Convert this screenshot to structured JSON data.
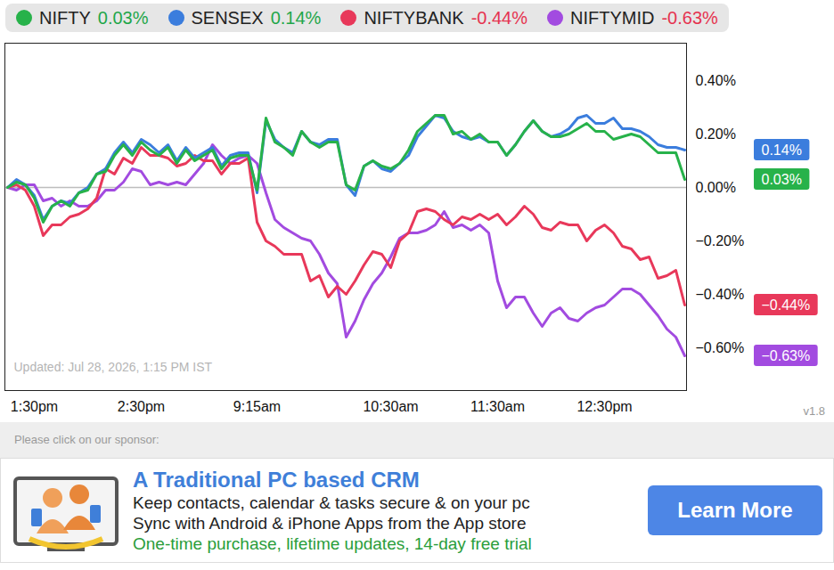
{
  "chart_data": {
    "type": "line",
    "categories": [
      null,
      null,
      null,
      "1:30pm",
      null,
      null,
      null,
      null,
      null,
      null,
      null,
      null,
      null,
      null,
      null,
      "2:30pm",
      null,
      null,
      null,
      null,
      null,
      null,
      null,
      null,
      null,
      null,
      null,
      null,
      "9:15am",
      null,
      null,
      null,
      null,
      null,
      null,
      null,
      null,
      null,
      null,
      null,
      null,
      null,
      null,
      "10:30am",
      null,
      null,
      null,
      null,
      null,
      null,
      null,
      null,
      null,
      null,
      null,
      "11:30am",
      null,
      null,
      null,
      null,
      null,
      null,
      null,
      null,
      null,
      null,
      null,
      "12:30pm",
      null,
      null,
      null,
      null,
      null,
      null,
      null,
      null,
      null
    ],
    "series": [
      {
        "name": "NIFTY",
        "color": "#27b24a",
        "change": 0.03,
        "change_label": "0.03%",
        "end_label": "0.03%",
        "values": [
          0.0,
          0.02,
          0.01,
          -0.04,
          -0.13,
          -0.07,
          -0.05,
          -0.07,
          -0.02,
          -0.01,
          0.05,
          0.06,
          0.12,
          0.16,
          0.12,
          0.17,
          0.14,
          0.12,
          0.15,
          0.09,
          0.14,
          0.1,
          0.12,
          0.14,
          0.07,
          0.11,
          0.12,
          0.12,
          -0.01,
          0.26,
          0.17,
          0.15,
          0.12,
          0.21,
          0.17,
          0.15,
          0.17,
          0.17,
          0.01,
          -0.01,
          0.08,
          0.1,
          0.08,
          0.07,
          0.09,
          0.14,
          0.21,
          0.24,
          0.27,
          0.27,
          0.2,
          0.21,
          0.18,
          0.2,
          0.17,
          0.17,
          0.12,
          0.16,
          0.21,
          0.25,
          0.21,
          0.19,
          0.19,
          0.2,
          0.22,
          0.24,
          0.21,
          0.21,
          0.18,
          0.19,
          0.2,
          0.19,
          0.16,
          0.13,
          0.13,
          0.13,
          0.03
        ]
      },
      {
        "name": "SENSEX",
        "color": "#3b7ddd",
        "change": 0.14,
        "change_label": "0.14%",
        "end_label": "0.14%",
        "values": [
          0.0,
          0.03,
          0.01,
          -0.03,
          -0.12,
          -0.07,
          -0.05,
          -0.06,
          -0.02,
          0.0,
          0.05,
          0.07,
          0.13,
          0.17,
          0.13,
          0.18,
          0.16,
          0.13,
          0.16,
          0.1,
          0.15,
          0.11,
          0.13,
          0.15,
          0.08,
          0.12,
          0.13,
          0.13,
          -0.02,
          0.25,
          0.18,
          0.15,
          0.13,
          0.21,
          0.17,
          0.16,
          0.18,
          0.18,
          0.01,
          -0.03,
          0.08,
          0.1,
          0.07,
          0.06,
          0.09,
          0.12,
          0.19,
          0.23,
          0.27,
          0.26,
          0.21,
          0.19,
          0.18,
          0.19,
          0.17,
          0.17,
          0.12,
          0.16,
          0.21,
          0.25,
          0.21,
          0.19,
          0.2,
          0.22,
          0.26,
          0.27,
          0.24,
          0.24,
          0.26,
          0.22,
          0.22,
          0.21,
          0.19,
          0.16,
          0.15,
          0.15,
          0.14
        ]
      },
      {
        "name": "NIFTYBANK",
        "color": "#e8385a",
        "change": -0.44,
        "change_label": "-0.44%",
        "end_label": "−0.44%",
        "values": [
          0.0,
          0.01,
          -0.01,
          -0.07,
          -0.18,
          -0.14,
          -0.14,
          -0.11,
          -0.1,
          -0.08,
          -0.04,
          0.07,
          0.05,
          0.11,
          0.09,
          0.15,
          0.12,
          0.12,
          0.11,
          0.08,
          0.09,
          0.12,
          0.1,
          0.1,
          0.05,
          0.09,
          0.09,
          0.11,
          -0.13,
          -0.2,
          -0.22,
          -0.25,
          -0.25,
          -0.25,
          -0.35,
          -0.33,
          -0.41,
          -0.37,
          -0.4,
          -0.35,
          -0.29,
          -0.24,
          -0.25,
          -0.3,
          -0.2,
          -0.17,
          -0.09,
          -0.08,
          -0.09,
          -0.12,
          -0.14,
          -0.11,
          -0.12,
          -0.1,
          -0.12,
          -0.1,
          -0.14,
          -0.11,
          -0.07,
          -0.1,
          -0.15,
          -0.16,
          -0.13,
          -0.14,
          -0.14,
          -0.2,
          -0.16,
          -0.14,
          -0.17,
          -0.22,
          -0.23,
          -0.27,
          -0.26,
          -0.34,
          -0.33,
          -0.31,
          -0.44
        ]
      },
      {
        "name": "NIFTYMID",
        "color": "#a24be0",
        "change": -0.63,
        "change_label": "-0.63%",
        "end_label": "−0.63%",
        "values": [
          0.0,
          -0.01,
          0.01,
          0.01,
          -0.05,
          -0.04,
          -0.07,
          -0.05,
          -0.07,
          -0.07,
          -0.05,
          -0.01,
          -0.01,
          0.02,
          0.07,
          0.06,
          0.01,
          0.02,
          0.01,
          0.02,
          0.01,
          0.05,
          0.09,
          0.16,
          0.12,
          0.09,
          0.11,
          0.12,
          0.09,
          -0.02,
          -0.12,
          -0.15,
          -0.17,
          -0.19,
          -0.2,
          -0.25,
          -0.32,
          -0.36,
          -0.56,
          -0.5,
          -0.42,
          -0.36,
          -0.32,
          -0.26,
          -0.19,
          -0.17,
          -0.17,
          -0.16,
          -0.14,
          -0.09,
          -0.15,
          -0.14,
          -0.16,
          -0.14,
          -0.17,
          -0.35,
          -0.45,
          -0.41,
          -0.41,
          -0.47,
          -0.52,
          -0.47,
          -0.45,
          -0.49,
          -0.5,
          -0.47,
          -0.45,
          -0.44,
          -0.41,
          -0.38,
          -0.38,
          -0.4,
          -0.44,
          -0.48,
          -0.53,
          -0.56,
          -0.63
        ]
      }
    ],
    "ylim": [
      -0.76,
      0.54
    ],
    "yticks": [
      {
        "value": 0.4,
        "label": "0.40%"
      },
      {
        "value": 0.2,
        "label": "0.20%"
      },
      {
        "value": 0,
        "label": "0.00%"
      },
      {
        "value": -0.2,
        "label": "−0.20%"
      },
      {
        "value": -0.4,
        "label": "−0.40%"
      },
      {
        "value": -0.6,
        "label": "−0.60%"
      }
    ],
    "reference_line": 0,
    "grid": false,
    "legend": "top",
    "note": "Updated: Jul 28, 2026, 1:15 PM IST",
    "version": "v1.8"
  },
  "sponsor": {
    "prompt": "Please click on our sponsor:",
    "title": "A Traditional PC based CRM",
    "lines": [
      "Keep contacts, calendar & tasks secure & on your pc",
      "Sync with Android & iPhone Apps from the App store"
    ],
    "tagline": "One-time purchase, lifetime updates, 14-day free trial",
    "button": "Learn More"
  }
}
